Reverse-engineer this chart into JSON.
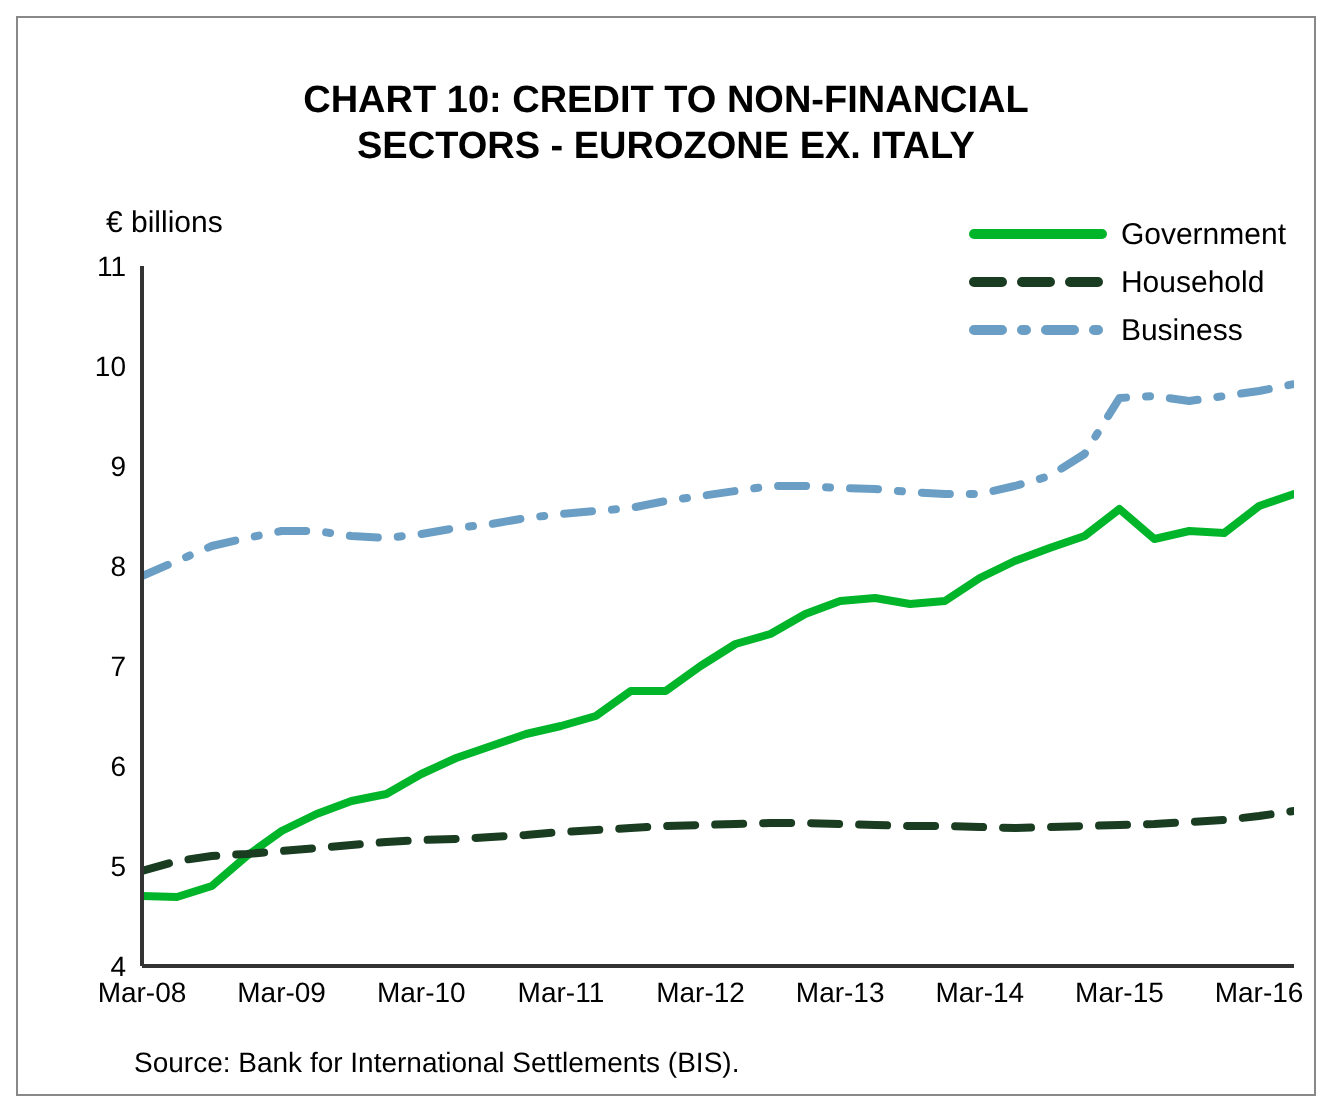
{
  "chart_data": {
    "type": "line",
    "title": "CHART 10: CREDIT TO NON-FINANCIAL SECTORS - EUROZONE EX. ITALY",
    "ylabel": "€ billions",
    "x": [
      "2008-03",
      "2008-06",
      "2008-09",
      "2008-12",
      "2009-03",
      "2009-06",
      "2009-09",
      "2009-12",
      "2010-03",
      "2010-06",
      "2010-09",
      "2010-12",
      "2011-03",
      "2011-06",
      "2011-09",
      "2011-12",
      "2012-03",
      "2012-06",
      "2012-09",
      "2012-12",
      "2013-03",
      "2013-06",
      "2013-09",
      "2013-12",
      "2014-03",
      "2014-06",
      "2014-09",
      "2014-12",
      "2015-03",
      "2015-06",
      "2015-09",
      "2015-12",
      "2016-03",
      "2016-06"
    ],
    "series": [
      {
        "name": "Government",
        "color": "#00b52a",
        "line_style": "solid",
        "values": [
          4.7,
          4.69,
          4.8,
          5.1,
          5.35,
          5.52,
          5.65,
          5.72,
          5.92,
          6.08,
          6.2,
          6.32,
          6.4,
          6.5,
          6.75,
          6.75,
          7.0,
          7.22,
          7.32,
          7.52,
          7.65,
          7.68,
          7.62,
          7.65,
          7.88,
          8.05,
          8.18,
          8.3,
          8.57,
          8.27,
          8.35,
          8.33,
          8.6,
          8.72
        ]
      },
      {
        "name": "Household",
        "color": "#1a3d22",
        "line_style": "dashed",
        "values": [
          4.95,
          5.05,
          5.1,
          5.12,
          5.15,
          5.18,
          5.21,
          5.24,
          5.26,
          5.27,
          5.29,
          5.31,
          5.34,
          5.36,
          5.38,
          5.4,
          5.41,
          5.42,
          5.43,
          5.43,
          5.42,
          5.41,
          5.4,
          5.4,
          5.39,
          5.38,
          5.39,
          5.4,
          5.41,
          5.42,
          5.44,
          5.46,
          5.5,
          5.55
        ]
      },
      {
        "name": "Business",
        "color": "#6a9ec4",
        "line_style": "dashdot",
        "values": [
          7.9,
          8.05,
          8.2,
          8.28,
          8.35,
          8.35,
          8.3,
          8.28,
          8.32,
          8.38,
          8.42,
          8.48,
          8.52,
          8.55,
          8.58,
          8.65,
          8.7,
          8.75,
          8.8,
          8.8,
          8.78,
          8.77,
          8.74,
          8.72,
          8.72,
          8.8,
          8.9,
          9.12,
          9.68,
          9.7,
          9.65,
          9.7,
          9.75,
          9.82
        ]
      }
    ],
    "xlim": [
      "2008-03",
      "2016-06"
    ],
    "xticks": [
      {
        "value": "2008-03",
        "label": "Mar-08"
      },
      {
        "value": "2009-03",
        "label": "Mar-09"
      },
      {
        "value": "2010-03",
        "label": "Mar-10"
      },
      {
        "value": "2011-03",
        "label": "Mar-11"
      },
      {
        "value": "2012-03",
        "label": "Mar-12"
      },
      {
        "value": "2013-03",
        "label": "Mar-13"
      },
      {
        "value": "2014-03",
        "label": "Mar-14"
      },
      {
        "value": "2015-03",
        "label": "Mar-15"
      },
      {
        "value": "2016-03",
        "label": "Mar-16"
      }
    ],
    "ylim": [
      4,
      11
    ],
    "yticks": [
      4,
      5,
      6,
      7,
      8,
      9,
      10,
      11
    ],
    "grid": false,
    "legend": "top right",
    "marker": "none",
    "annotations": [
      "Source: Bank for International Settlements (BIS)."
    ]
  }
}
